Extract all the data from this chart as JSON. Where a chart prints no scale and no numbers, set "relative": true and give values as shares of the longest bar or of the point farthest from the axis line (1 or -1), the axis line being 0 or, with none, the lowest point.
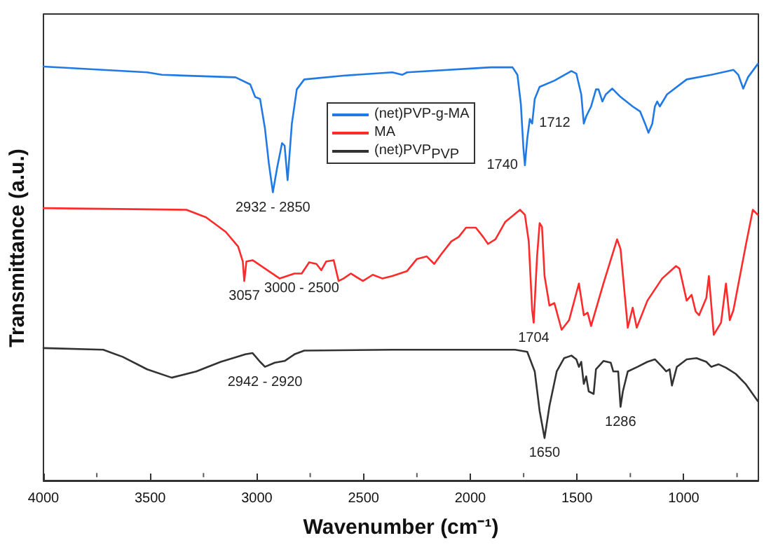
{
  "chart_data": {
    "type": "line",
    "relative": true,
    "xlabel": "Wavenumber (cm⁻¹)",
    "ylabel": "Transmittance (a.u.)",
    "xlim": [
      4000,
      650
    ],
    "xticks": [
      4000,
      3500,
      3000,
      2500,
      2000,
      1500,
      1000
    ],
    "grid": false,
    "legend": "top",
    "marker": "none",
    "line_style": "solid",
    "series": [
      {
        "name": "(net)PVP-g-MA",
        "color": "#1f7ae6",
        "x": [
          4000,
          3514,
          3445,
          3100,
          3031,
          3008,
          2985,
          2962,
          2944,
          2925,
          2905,
          2882,
          2870,
          2856,
          2836,
          2813,
          2778,
          2594,
          2365,
          2319,
          2296,
          1905,
          1802,
          1779,
          1763,
          1751,
          1744,
          1733,
          1721,
          1710,
          1698,
          1675,
          1606,
          1526,
          1503,
          1480,
          1468,
          1457,
          1434,
          1411,
          1399,
          1381,
          1365,
          1335,
          1296,
          1239,
          1204,
          1181,
          1165,
          1147,
          1135,
          1124,
          1112,
          1078,
          986,
          871,
          767,
          744,
          721,
          699,
          653
        ],
        "values": [
          0.994,
          0.98,
          0.974,
          0.968,
          0.951,
          0.921,
          0.916,
          0.845,
          0.762,
          0.692,
          0.751,
          0.81,
          0.804,
          0.721,
          0.857,
          0.939,
          0.963,
          0.972,
          0.98,
          0.974,
          0.98,
          0.992,
          0.992,
          0.974,
          0.904,
          0.798,
          0.757,
          0.821,
          0.868,
          0.857,
          0.916,
          0.945,
          0.96,
          0.983,
          0.977,
          0.927,
          0.857,
          0.874,
          0.898,
          0.939,
          0.939,
          0.91,
          0.927,
          0.941,
          0.921,
          0.898,
          0.886,
          0.857,
          0.835,
          0.857,
          0.898,
          0.91,
          0.898,
          0.927,
          0.963,
          0.974,
          0.986,
          0.974,
          0.941,
          0.968,
          1.0
        ]
      },
      {
        "name": "MA",
        "color": "#ff2b2b",
        "x": [
          4000,
          3330,
          3238,
          3146,
          3088,
          3066,
          3059,
          3049,
          3020,
          2962,
          2893,
          2824,
          2790,
          2755,
          2721,
          2698,
          2675,
          2640,
          2617,
          2594,
          2560,
          2503,
          2457,
          2411,
          2365,
          2296,
          2250,
          2204,
          2169,
          2135,
          2089,
          2054,
          2020,
          1974,
          1940,
          1917,
          1882,
          1836,
          1767,
          1744,
          1726,
          1710,
          1703,
          1687,
          1675,
          1664,
          1652,
          1629,
          1606,
          1572,
          1537,
          1491,
          1468,
          1450,
          1434,
          1376,
          1312,
          1296,
          1262,
          1239,
          1220,
          1170,
          1101,
          1036,
          1020,
          986,
          963,
          944,
          928,
          894,
          882,
          859,
          825,
          802,
          784,
          767,
          710,
          676,
          653
        ],
        "values": [
          0.654,
          0.65,
          0.632,
          0.597,
          0.562,
          0.526,
          0.479,
          0.526,
          0.529,
          0.509,
          0.485,
          0.497,
          0.497,
          0.524,
          0.52,
          0.505,
          0.526,
          0.529,
          0.479,
          0.485,
          0.497,
          0.479,
          0.494,
          0.485,
          0.491,
          0.503,
          0.532,
          0.538,
          0.52,
          0.544,
          0.574,
          0.585,
          0.607,
          0.607,
          0.585,
          0.568,
          0.579,
          0.621,
          0.65,
          0.638,
          0.574,
          0.409,
          0.379,
          0.538,
          0.618,
          0.609,
          0.491,
          0.42,
          0.426,
          0.362,
          0.385,
          0.473,
          0.397,
          0.403,
          0.371,
          0.473,
          0.579,
          0.556,
          0.367,
          0.415,
          0.367,
          0.432,
          0.485,
          0.515,
          0.509,
          0.432,
          0.446,
          0.406,
          0.397,
          0.438,
          0.491,
          0.35,
          0.379,
          0.473,
          0.385,
          0.409,
          0.562,
          0.65,
          0.638
        ]
      },
      {
        "name": "(net)PVP$_{PVP}$",
        "color": "#333333",
        "x": [
          4000,
          3720,
          3629,
          3514,
          3399,
          3284,
          3169,
          3054,
          3020,
          2985,
          2962,
          2916,
          2870,
          2824,
          2778,
          2365,
          1790,
          1733,
          1698,
          1675,
          1652,
          1629,
          1595,
          1560,
          1526,
          1503,
          1491,
          1480,
          1468,
          1457,
          1445,
          1422,
          1411,
          1376,
          1342,
          1330,
          1307,
          1296,
          1285,
          1262,
          1216,
          1170,
          1135,
          1101,
          1082,
          1066,
          1055,
          1032,
          986,
          940,
          894,
          871,
          836,
          802,
          756,
          710,
          653
        ],
        "values": [
          0.318,
          0.314,
          0.297,
          0.267,
          0.247,
          0.262,
          0.285,
          0.303,
          0.306,
          0.285,
          0.273,
          0.283,
          0.287,
          0.303,
          0.312,
          0.314,
          0.314,
          0.309,
          0.262,
          0.167,
          0.102,
          0.179,
          0.262,
          0.294,
          0.3,
          0.291,
          0.273,
          0.285,
          0.232,
          0.25,
          0.214,
          0.208,
          0.267,
          0.287,
          0.283,
          0.262,
          0.262,
          0.177,
          0.214,
          0.262,
          0.273,
          0.285,
          0.291,
          0.273,
          0.262,
          0.267,
          0.228,
          0.273,
          0.291,
          0.294,
          0.285,
          0.273,
          0.279,
          0.271,
          0.256,
          0.232,
          0.191
        ]
      }
    ],
    "annotations": [
      {
        "text": "2932 - 2850",
        "x": 2925,
        "y": 0.692
      },
      {
        "text": "1740",
        "x": 1744,
        "y": 0.757
      },
      {
        "text": "1712",
        "x": 1710,
        "y": 0.857
      },
      {
        "text": "3057",
        "x": 3059,
        "y": 0.479
      },
      {
        "text": "3000 - 2500",
        "x": 2790,
        "y": 0.497
      },
      {
        "text": "1704",
        "x": 1703,
        "y": 0.379
      },
      {
        "text": "2942 - 2920",
        "x": 2962,
        "y": 0.273
      },
      {
        "text": "1650",
        "x": 1652,
        "y": 0.102
      },
      {
        "text": "1286",
        "x": 1296,
        "y": 0.177
      }
    ]
  }
}
